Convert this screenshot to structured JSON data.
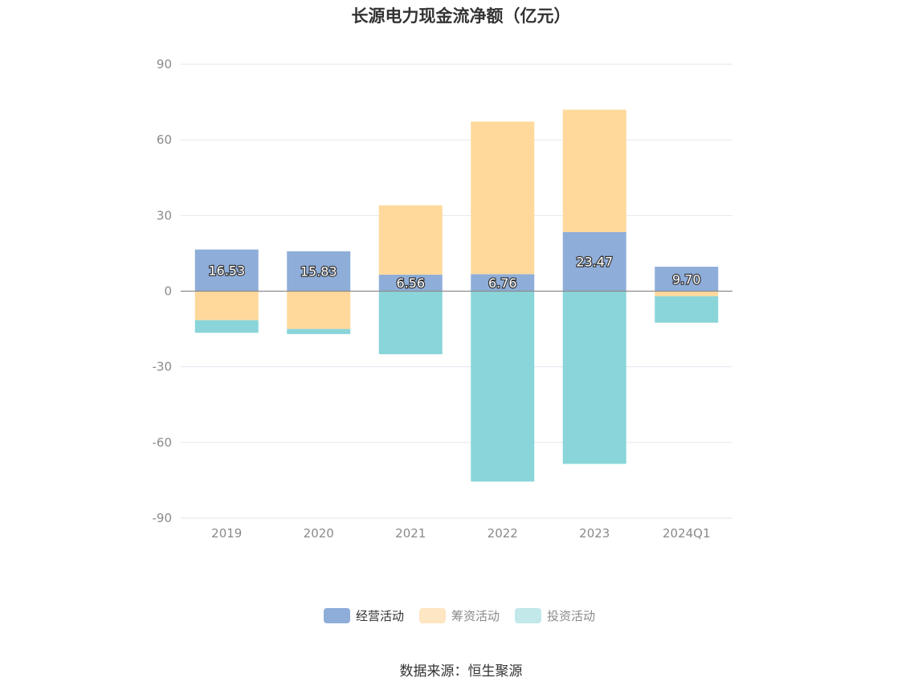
{
  "chart_data": {
    "type": "bar",
    "stacked": true,
    "title": "长源电力现金流净额（亿元）",
    "categories": [
      "2019",
      "2020",
      "2021",
      "2022",
      "2023",
      "2024Q1"
    ],
    "series": [
      {
        "name": "经营活动",
        "color": "#8eadd9",
        "values": [
          16.53,
          15.83,
          6.56,
          6.76,
          23.47,
          9.7
        ],
        "labels": [
          "16.53",
          "15.83",
          "6.56",
          "6.76",
          "23.47",
          "9.70"
        ]
      },
      {
        "name": "筹资活动",
        "color": "#fed99b",
        "values": [
          -11.5,
          -15.0,
          27.5,
          60.5,
          48.5,
          -2.0
        ]
      },
      {
        "name": "投资活动",
        "color": "#89d5d9",
        "values": [
          -5.0,
          -2.0,
          -25.0,
          -75.5,
          -68.5,
          -10.5
        ]
      }
    ],
    "legend_colors": [
      "#8eadd9",
      "#fee6c3",
      "#c2e8ea"
    ],
    "yticks": [
      "90",
      "60",
      "30",
      "0",
      "-30",
      "-60",
      "-90"
    ],
    "ylim": [
      -90,
      90
    ],
    "grid": true,
    "legend_position": "bottom"
  },
  "source": "数据来源：恒生聚源"
}
